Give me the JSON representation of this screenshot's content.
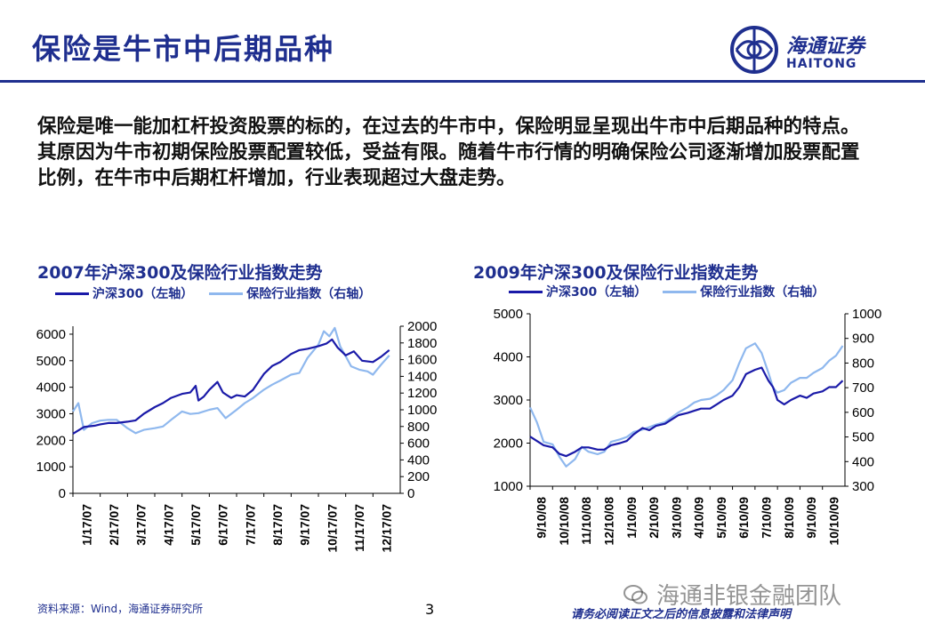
{
  "slide": {
    "title": "保险是牛市中后期品种",
    "body": "保险是唯一能加杠杆投资股票的标的，在过去的牛市中，保险明显呈现出牛市中后期品种的特点。其原因为牛市初期保险股票配置较低，受益有限。随着牛市行情的明确保险公司逐渐增加股票配置比例，在牛市中后期杠杆增加，行业表现超过大盘走势。",
    "page_number": "3",
    "source": "资料来源：Wind，海通证券研究所",
    "disclaimer": "请务必阅读正文之后的信息披露和法律声明",
    "watermark": "海通非银金融团队"
  },
  "logo": {
    "cn": "海通证券",
    "en": "HAITONG"
  },
  "colors": {
    "brand": "#1f2f8f",
    "series_dark": "#1a1aa8",
    "series_light": "#8fb8ee"
  },
  "chart_data": [
    {
      "type": "line",
      "title": "2007年沪深300及保险行业指数走势",
      "x_ticks": [
        "1/17/07",
        "2/17/07",
        "3/17/07",
        "4/17/07",
        "5/17/07",
        "6/17/07",
        "7/17/07",
        "8/17/07",
        "9/17/07",
        "10/17/07",
        "11/17/07",
        "12/17/07"
      ],
      "y_left": {
        "ticks": [
          0,
          1000,
          2000,
          3000,
          4000,
          5000,
          6000
        ],
        "ylim": [
          0,
          6300
        ]
      },
      "y_right": {
        "ticks": [
          0,
          200,
          400,
          600,
          800,
          1000,
          1200,
          1400,
          1600,
          1800,
          2000
        ],
        "ylim": [
          0,
          2000
        ]
      },
      "series": [
        {
          "name": "沪深300（左轴）",
          "axis": "left",
          "x": [
            0,
            0.4,
            0.8,
            1,
            1.3,
            1.6,
            2,
            2.3,
            2.6,
            3,
            3.3,
            3.6,
            4,
            4.3,
            4.5,
            4.6,
            4.8,
            5,
            5.3,
            5.5,
            5.8,
            6,
            6.3,
            6.6,
            7,
            7.3,
            7.6,
            8,
            8.3,
            8.6,
            9,
            9.3,
            9.5,
            9.7,
            10,
            10.3,
            10.6,
            11,
            11.3,
            11.6
          ],
          "y": [
            2250,
            2500,
            2550,
            2600,
            2650,
            2650,
            2700,
            2750,
            3000,
            3250,
            3400,
            3600,
            3750,
            3800,
            4050,
            3500,
            3650,
            3900,
            4200,
            3800,
            3600,
            3700,
            3650,
            3900,
            4500,
            4800,
            4950,
            5250,
            5400,
            5450,
            5550,
            5650,
            5800,
            5500,
            5200,
            5350,
            5000,
            4950,
            5150,
            5400
          ]
        },
        {
          "name": "保险行业指数（右轴）",
          "axis": "right",
          "x": [
            0,
            0.2,
            0.4,
            0.7,
            1,
            1.3,
            1.6,
            2,
            2.3,
            2.6,
            3,
            3.3,
            3.6,
            4,
            4.3,
            4.6,
            5,
            5.3,
            5.6,
            6,
            6.3,
            6.6,
            7,
            7.3,
            7.6,
            8,
            8.3,
            8.6,
            9,
            9.2,
            9.4,
            9.6,
            9.8,
            10,
            10.2,
            10.5,
            10.8,
            11,
            11.3,
            11.6
          ],
          "y": [
            980,
            1080,
            760,
            840,
            870,
            880,
            880,
            780,
            720,
            760,
            780,
            800,
            880,
            980,
            950,
            960,
            1000,
            1020,
            900,
            1000,
            1080,
            1140,
            1240,
            1300,
            1350,
            1420,
            1440,
            1620,
            1780,
            1940,
            1880,
            1980,
            1760,
            1640,
            1520,
            1480,
            1460,
            1420,
            1540,
            1650
          ]
        }
      ]
    },
    {
      "type": "line",
      "title": "2009年沪深300及保险行业指数走势",
      "x_ticks": [
        "9/10/08",
        "10/10/08",
        "11/10/08",
        "12/10/08",
        "1/10/09",
        "2/10/09",
        "3/10/09",
        "4/10/09",
        "5/10/09",
        "6/10/09",
        "7/10/09",
        "8/10/09",
        "9/10/09",
        "10/10/09"
      ],
      "y_left": {
        "ticks": [
          1000,
          2000,
          3000,
          4000,
          5000
        ],
        "ylim": [
          1000,
          5000
        ]
      },
      "y_right": {
        "ticks": [
          300,
          400,
          500,
          600,
          700,
          800,
          900,
          1000
        ],
        "ylim": [
          300,
          1000
        ]
      },
      "series": [
        {
          "name": "沪深300（左轴）",
          "axis": "left",
          "x": [
            0,
            0.3,
            0.6,
            1,
            1.3,
            1.6,
            2,
            2.3,
            2.6,
            3,
            3.3,
            3.6,
            4,
            4.3,
            4.6,
            5,
            5.3,
            5.6,
            6,
            6.3,
            6.6,
            7,
            7.3,
            7.6,
            8,
            8.3,
            8.6,
            9,
            9.3,
            9.6,
            10,
            10.3,
            10.6,
            10.8,
            11,
            11.3,
            11.6,
            12,
            12.3,
            12.6,
            13,
            13.3,
            13.6,
            13.9
          ],
          "y": [
            2150,
            2050,
            1950,
            1900,
            1750,
            1700,
            1800,
            1900,
            1900,
            1850,
            1850,
            1950,
            2000,
            2050,
            2200,
            2350,
            2300,
            2400,
            2450,
            2550,
            2650,
            2700,
            2750,
            2800,
            2800,
            2900,
            3000,
            3100,
            3300,
            3600,
            3700,
            3750,
            3450,
            3300,
            3000,
            2900,
            3000,
            3100,
            3050,
            3150,
            3200,
            3300,
            3300,
            3450
          ]
        },
        {
          "name": "保险行业指数（右轴）",
          "axis": "right",
          "x": [
            0,
            0.3,
            0.6,
            1,
            1.3,
            1.6,
            2,
            2.3,
            2.6,
            3,
            3.3,
            3.6,
            4,
            4.3,
            4.6,
            5,
            5.3,
            5.6,
            6,
            6.3,
            6.6,
            7,
            7.3,
            7.6,
            8,
            8.3,
            8.6,
            9,
            9.3,
            9.6,
            10,
            10.3,
            10.6,
            10.8,
            11,
            11.3,
            11.6,
            12,
            12.3,
            12.6,
            13,
            13.3,
            13.6,
            13.9
          ],
          "y": [
            620,
            560,
            480,
            470,
            420,
            380,
            410,
            460,
            440,
            430,
            440,
            480,
            490,
            500,
            520,
            530,
            540,
            550,
            560,
            580,
            600,
            620,
            640,
            650,
            655,
            670,
            690,
            730,
            800,
            860,
            880,
            840,
            760,
            700,
            680,
            690,
            720,
            740,
            740,
            760,
            780,
            810,
            830,
            870
          ]
        }
      ]
    }
  ]
}
